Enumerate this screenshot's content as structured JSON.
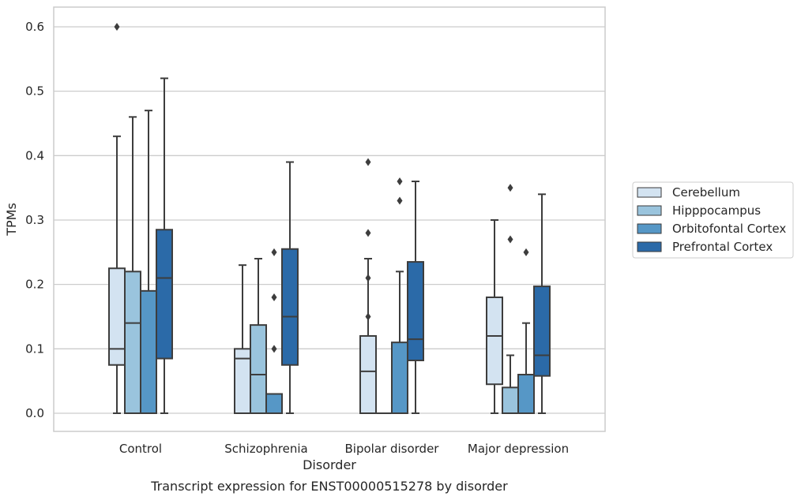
{
  "chart_data": {
    "type": "box",
    "caption": "Transcript expression for ENST00000515278 by disorder",
    "xlabel": "Disorder",
    "ylabel": "TPMs",
    "ylim": [
      -0.03,
      0.63
    ],
    "yticks": [
      "0.0",
      "0.1",
      "0.2",
      "0.3",
      "0.4",
      "0.5",
      "0.6"
    ],
    "grid": "horizontal",
    "legend_position": "right",
    "categories": [
      "Control",
      "Schizophrenia",
      "Bipolar disorder",
      "Major depression"
    ],
    "series": [
      {
        "name": "Cerebellum",
        "color": "#d3e3f1",
        "boxes": [
          {
            "whislo": 0.0,
            "q1": 0.075,
            "med": 0.1,
            "q3": 0.225,
            "whishi": 0.43,
            "fliers": [
              0.6
            ]
          },
          {
            "whislo": 0.0,
            "q1": 0.0,
            "med": 0.085,
            "q3": 0.1,
            "whishi": 0.23,
            "fliers": []
          },
          {
            "whislo": 0.0,
            "q1": 0.0,
            "med": 0.065,
            "q3": 0.12,
            "whishi": 0.24,
            "fliers": [
              0.39,
              0.28,
              0.21,
              0.15
            ]
          },
          {
            "whislo": 0.0,
            "q1": 0.045,
            "med": 0.12,
            "q3": 0.18,
            "whishi": 0.3,
            "fliers": []
          }
        ]
      },
      {
        "name": "Hipppocampus",
        "color": "#9ac4dd",
        "boxes": [
          {
            "whislo": 0.0,
            "q1": 0.0,
            "med": 0.14,
            "q3": 0.22,
            "whishi": 0.46,
            "fliers": []
          },
          {
            "whislo": 0.0,
            "q1": 0.0,
            "med": 0.06,
            "q3": 0.137,
            "whishi": 0.24,
            "fliers": []
          },
          {
            "whislo": 0.0,
            "q1": 0.0,
            "med": 0.0,
            "q3": 0.0,
            "whishi": 0.0,
            "fliers": []
          },
          {
            "whislo": 0.0,
            "q1": 0.0,
            "med": 0.0,
            "q3": 0.04,
            "whishi": 0.09,
            "fliers": [
              0.35,
              0.27
            ]
          }
        ]
      },
      {
        "name": "Orbitofontal Cortex",
        "color": "#5697c6",
        "boxes": [
          {
            "whislo": 0.0,
            "q1": 0.0,
            "med": 0.0,
            "q3": 0.19,
            "whishi": 0.47,
            "fliers": []
          },
          {
            "whislo": 0.0,
            "q1": 0.0,
            "med": 0.0,
            "q3": 0.03,
            "whishi": 0.03,
            "fliers": [
              0.25,
              0.18,
              0.1
            ]
          },
          {
            "whislo": 0.0,
            "q1": 0.0,
            "med": 0.0,
            "q3": 0.11,
            "whishi": 0.22,
            "fliers": [
              0.36,
              0.33
            ]
          },
          {
            "whislo": 0.0,
            "q1": 0.0,
            "med": 0.0,
            "q3": 0.06,
            "whishi": 0.14,
            "fliers": [
              0.25
            ]
          }
        ]
      },
      {
        "name": "Prefrontal Cortex",
        "color": "#2b6aa8",
        "boxes": [
          {
            "whislo": 0.0,
            "q1": 0.085,
            "med": 0.21,
            "q3": 0.285,
            "whishi": 0.52,
            "fliers": []
          },
          {
            "whislo": 0.0,
            "q1": 0.075,
            "med": 0.15,
            "q3": 0.255,
            "whishi": 0.39,
            "fliers": []
          },
          {
            "whislo": 0.0,
            "q1": 0.082,
            "med": 0.115,
            "q3": 0.235,
            "whishi": 0.36,
            "fliers": []
          },
          {
            "whislo": 0.0,
            "q1": 0.058,
            "med": 0.09,
            "q3": 0.197,
            "whishi": 0.34,
            "fliers": []
          }
        ]
      }
    ]
  }
}
